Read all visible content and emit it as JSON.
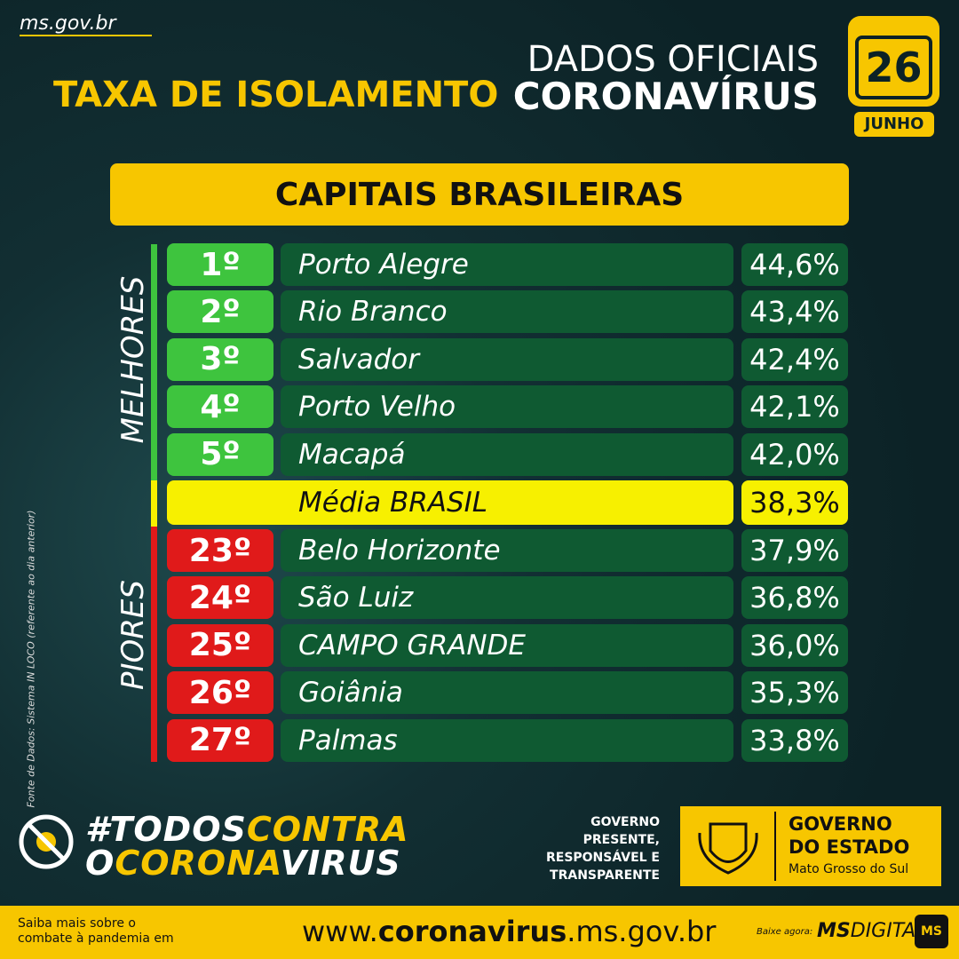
{
  "header": {
    "site": "ms.gov.br",
    "title": "TAXA DE ISOLAMENTO",
    "official_1": "DADOS OFICIAIS",
    "official_2": "CORONAVÍRUS",
    "day": "26",
    "month": "JUNHO"
  },
  "banner": "CAPITAIS BRASILEIRAS",
  "best": {
    "label": "MELHORES",
    "rows": [
      [
        "1º",
        "Porto Alegre",
        "44,6%"
      ],
      [
        "2º",
        "Rio Branco",
        "43,4%"
      ],
      [
        "3º",
        "Salvador",
        "42,4%"
      ],
      [
        "4º",
        "Porto Velho",
        "42,1%"
      ],
      [
        "5º",
        "Macapá",
        "42,0%"
      ]
    ]
  },
  "average": {
    "label": "Média BRASIL",
    "value": "38,3%"
  },
  "worst": {
    "label": "PIORES",
    "rows": [
      [
        "23º",
        "Belo Horizonte",
        "37,9%"
      ],
      [
        "24º",
        "São Luiz",
        "36,8%"
      ],
      [
        "25º",
        "CAMPO GRANDE",
        "36,0%"
      ],
      [
        "26º",
        "Goiânia",
        "35,3%"
      ],
      [
        "27º",
        "Palmas",
        "33,8%"
      ]
    ]
  },
  "source": "Fonte de Dados: Sistema IN LOCO (referente ao dia anterior)",
  "campaign": {
    "line1": [
      "#TODOS",
      "CONTRA"
    ],
    "line2": [
      "O",
      "CORONA",
      "VIRUS"
    ]
  },
  "government": {
    "slogan": [
      "GOVERNO",
      "PRESENTE,",
      "RESPONSÁVEL E",
      "TRANSPARENTE"
    ],
    "name_1": "GOVERNO",
    "name_2": "DO ESTADO",
    "state": "Mato Grosso do Sul"
  },
  "footer": {
    "info": [
      "Saiba mais sobre o",
      "combate à pandemia em"
    ],
    "url": [
      "www.",
      "coronavirus",
      ".ms.gov.br"
    ],
    "download": "Baixe agora:",
    "app": [
      "MS",
      "DIGITAL"
    ],
    "app_icon": "MS"
  }
}
